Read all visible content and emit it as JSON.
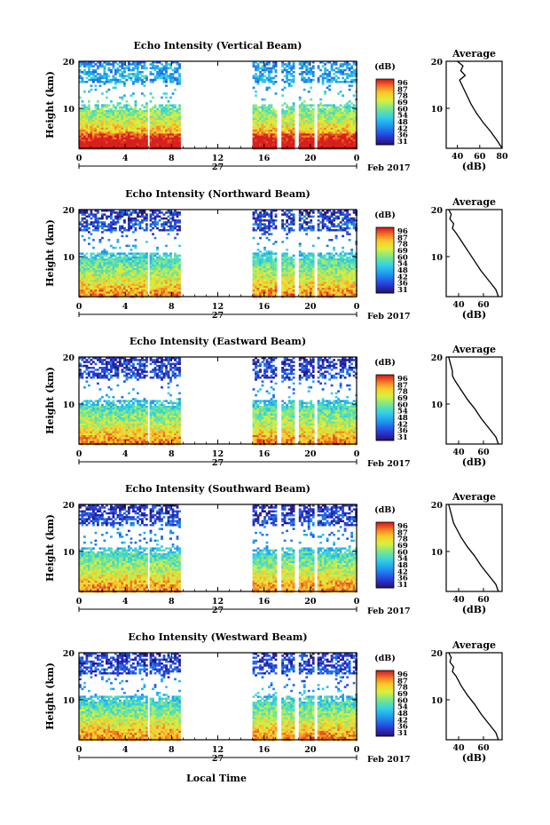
{
  "figure": {
    "xlabel": "Local Time",
    "date_label": "Feb 2017",
    "day_label": "27",
    "avg_title": "Average",
    "avg_xlabel": "(dB)",
    "cb_unit": "(dB)",
    "cb_ticks": [
      "96",
      "87",
      "78",
      "69",
      "60",
      "54",
      "48",
      "42",
      "36",
      "31"
    ],
    "ylabel": "Height (km)",
    "x_ticks": [
      "0",
      "4",
      "8",
      "12",
      "16",
      "20",
      "0"
    ],
    "y_ticks": [
      "20",
      "10"
    ],
    "avg_x_ticks": [
      "40",
      "60",
      "80"
    ],
    "avg_y_ticks": [
      "20",
      "10"
    ]
  },
  "chart_data": [
    {
      "type": "heatmap",
      "title": "Echo Intensity (Vertical Beam)",
      "xlim": [
        0,
        24
      ],
      "ylim": [
        1.5,
        20
      ],
      "x_ticks": [
        0,
        4,
        8,
        12,
        16,
        20,
        24
      ],
      "color_range": [
        31,
        96
      ],
      "data_intervals_h": [
        [
          0,
          5.8
        ],
        [
          6.1,
          8.6
        ],
        [
          15,
          17
        ],
        [
          17.5,
          18.6
        ],
        [
          19,
          20.2
        ],
        [
          20.6,
          24
        ]
      ],
      "profile": {
        "xlim": [
          30,
          80
        ],
        "ticks": [
          40,
          60,
          80
        ],
        "height": [
          1.5,
          3,
          5,
          7,
          9,
          11,
          13,
          15,
          16,
          17,
          18,
          19,
          20
        ],
        "value": [
          80,
          76,
          70,
          63,
          57,
          52,
          48,
          44,
          42,
          47,
          43,
          45,
          40
        ]
      }
    },
    {
      "type": "heatmap",
      "title": "Echo Intensity (Northward Beam)",
      "xlim": [
        0,
        24
      ],
      "ylim": [
        1.5,
        20
      ],
      "x_ticks": [
        0,
        4,
        8,
        12,
        16,
        20,
        24
      ],
      "color_range": [
        31,
        96
      ],
      "data_intervals_h": [
        [
          0,
          5.8
        ],
        [
          6.1,
          8.6
        ],
        [
          15,
          17
        ],
        [
          17.5,
          18.6
        ],
        [
          19,
          20.2
        ],
        [
          20.6,
          24
        ]
      ],
      "profile": {
        "xlim": [
          30,
          75
        ],
        "ticks": [
          40,
          60
        ],
        "height": [
          1.5,
          3,
          5,
          7,
          9,
          11,
          13,
          15,
          16,
          17,
          18,
          19,
          20
        ],
        "value": [
          72,
          70,
          64,
          58,
          53,
          48,
          43,
          38,
          35,
          36,
          33,
          34,
          32
        ]
      }
    },
    {
      "type": "heatmap",
      "title": "Echo Intensity (Eastward Beam)",
      "xlim": [
        0,
        24
      ],
      "ylim": [
        1.5,
        20
      ],
      "x_ticks": [
        0,
        4,
        8,
        12,
        16,
        20,
        24
      ],
      "color_range": [
        31,
        96
      ],
      "data_intervals_h": [
        [
          0,
          5.8
        ],
        [
          6.1,
          8.6
        ],
        [
          15,
          17
        ],
        [
          17.5,
          18.6
        ],
        [
          19,
          20.2
        ],
        [
          20.6,
          24
        ]
      ],
      "profile": {
        "xlim": [
          30,
          75
        ],
        "ticks": [
          40,
          60
        ],
        "height": [
          1.5,
          3,
          5,
          7,
          9,
          11,
          13,
          15,
          16,
          17,
          18,
          19,
          20
        ],
        "value": [
          72,
          70,
          64,
          58,
          53,
          47,
          42,
          37,
          35,
          35,
          34,
          33,
          32
        ]
      }
    },
    {
      "type": "heatmap",
      "title": "Echo Intensity (Southward Beam)",
      "xlim": [
        0,
        24
      ],
      "ylim": [
        1.5,
        20
      ],
      "x_ticks": [
        0,
        4,
        8,
        12,
        16,
        20,
        24
      ],
      "color_range": [
        31,
        96
      ],
      "data_intervals_h": [
        [
          0,
          5.8
        ],
        [
          6.1,
          8.6
        ],
        [
          15,
          17
        ],
        [
          17.5,
          18.6
        ],
        [
          19,
          20.2
        ],
        [
          20.6,
          24
        ]
      ],
      "profile": {
        "xlim": [
          30,
          75
        ],
        "ticks": [
          40,
          60
        ],
        "height": [
          1.5,
          3,
          5,
          7,
          9,
          11,
          13,
          15,
          16,
          17,
          18,
          19,
          20
        ],
        "value": [
          72,
          70,
          64,
          58,
          53,
          47,
          42,
          38,
          36,
          35,
          34,
          33,
          32
        ]
      }
    },
    {
      "type": "heatmap",
      "title": "Echo Intensity (Westward Beam)",
      "xlim": [
        0,
        24
      ],
      "ylim": [
        1.5,
        20
      ],
      "x_ticks": [
        0,
        4,
        8,
        12,
        16,
        20,
        24
      ],
      "color_range": [
        31,
        96
      ],
      "data_intervals_h": [
        [
          0,
          5.8
        ],
        [
          6.1,
          8.6
        ],
        [
          15,
          17
        ],
        [
          17.5,
          18.6
        ],
        [
          19,
          20.2
        ],
        [
          20.6,
          24
        ]
      ],
      "profile": {
        "xlim": [
          30,
          75
        ],
        "ticks": [
          40,
          60
        ],
        "height": [
          1.5,
          3,
          5,
          7,
          9,
          11,
          13,
          15,
          16,
          17,
          18,
          19,
          20
        ],
        "value": [
          72,
          70,
          64,
          58,
          53,
          47,
          42,
          38,
          35,
          36,
          33,
          34,
          32
        ]
      }
    }
  ]
}
